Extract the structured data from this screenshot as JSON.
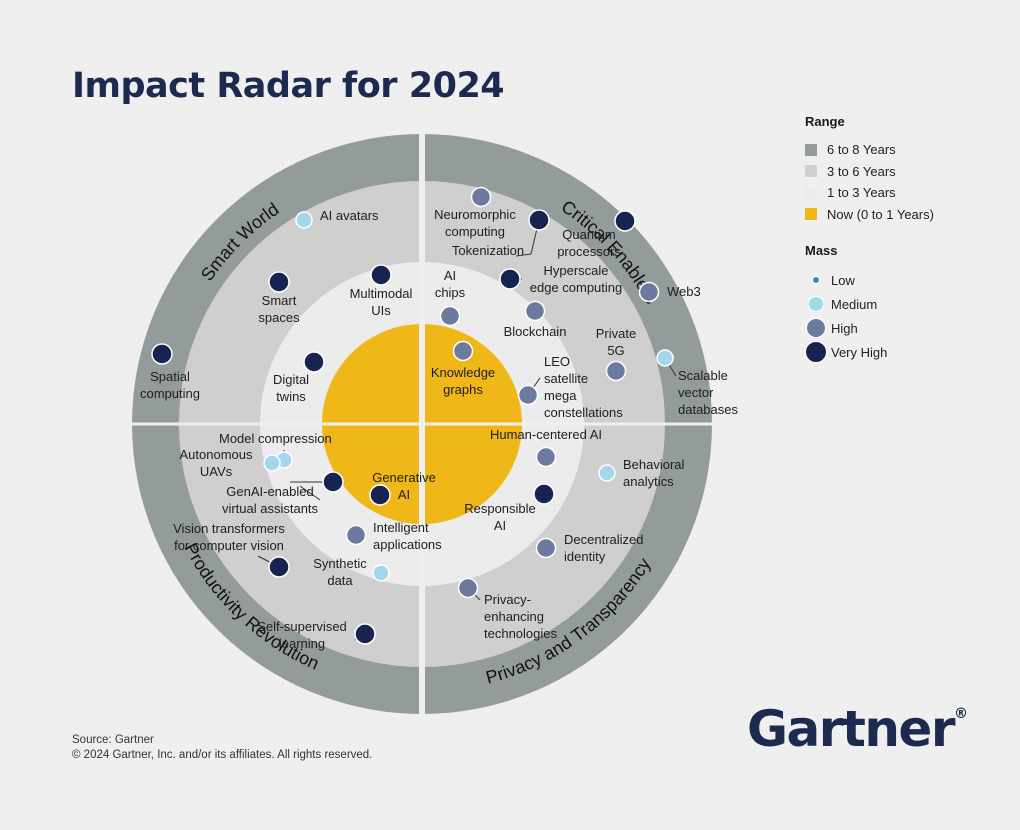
{
  "title": "Impact Radar for 2024",
  "legend": {
    "range_title": "Range",
    "range_items": [
      {
        "label": "6 to 8 Years",
        "color": "#949b9b"
      },
      {
        "label": "3 to 6 Years",
        "color": "#cfcfcf"
      },
      {
        "label": "1 to 3 Years",
        "color": "#ececec"
      },
      {
        "label": "Now (0 to 1 Years)",
        "color": "#f0b719"
      }
    ],
    "mass_title": "Mass",
    "mass_items": [
      {
        "label": "Low",
        "color": "#2a8ec9"
      },
      {
        "label": "Medium",
        "color": "#a6d5ee"
      },
      {
        "label": "High",
        "color": "#6b7a9e"
      },
      {
        "label": "Very High",
        "color": "#172350"
      }
    ]
  },
  "source": "Source: Gartner",
  "copyright": "© 2024 Gartner, Inc. and/or its affiliates. All rights reserved.",
  "logo": "Gartner",
  "logo_mark": "®",
  "chart_data": {
    "type": "radar",
    "rings": [
      "Now (0 to 1 Years)",
      "1 to 3 Years",
      "3 to 6 Years",
      "6 to 8 Years"
    ],
    "quadrants": [
      {
        "name": "Smart World",
        "position": "top-left"
      },
      {
        "name": "Critical Enablers",
        "position": "top-right"
      },
      {
        "name": "Privacy and Transparency",
        "position": "bottom-right"
      },
      {
        "name": "Productivity Revolution",
        "position": "bottom-left"
      }
    ],
    "technologies": [
      {
        "name": "AI avatars",
        "quadrant": "Smart World",
        "range": "3 to 6 Years",
        "mass": "Medium"
      },
      {
        "name": "Smart spaces",
        "quadrant": "Smart World",
        "range": "3 to 6 Years",
        "mass": "Very High"
      },
      {
        "name": "Multimodal UIs",
        "quadrant": "Smart World",
        "range": "1 to 3 Years",
        "mass": "Very High"
      },
      {
        "name": "Spatial computing",
        "quadrant": "Smart World",
        "range": "6 to 8 Years",
        "mass": "Very High"
      },
      {
        "name": "Digital twins",
        "quadrant": "Smart World",
        "range": "1 to 3 Years",
        "mass": "Very High"
      },
      {
        "name": "Neuromorphic computing",
        "quadrant": "Critical Enablers",
        "range": "6 to 8 Years",
        "mass": "High"
      },
      {
        "name": "Tokenization",
        "quadrant": "Critical Enablers",
        "range": "3 to 6 Years",
        "mass": "Very High"
      },
      {
        "name": "Quantum processors",
        "quadrant": "Critical Enablers",
        "range": "6 to 8 Years",
        "mass": "Very High"
      },
      {
        "name": "AI chips",
        "quadrant": "Critical Enablers",
        "range": "1 to 3 Years",
        "mass": "High"
      },
      {
        "name": "Hyperscale edge computing",
        "quadrant": "Critical Enablers",
        "range": "1 to 3 Years",
        "mass": "Very High"
      },
      {
        "name": "Web3",
        "quadrant": "Critical Enablers",
        "range": "6 to 8 Years",
        "mass": "High"
      },
      {
        "name": "Blockchain",
        "quadrant": "Critical Enablers",
        "range": "3 to 6 Years",
        "mass": "High"
      },
      {
        "name": "Private 5G",
        "quadrant": "Critical Enablers",
        "range": "3 to 6 Years",
        "mass": "High"
      },
      {
        "name": "Knowledge graphs",
        "quadrant": "Critical Enablers",
        "range": "Now (0 to 1 Years)",
        "mass": "High"
      },
      {
        "name": "LEO satellite mega constellations",
        "quadrant": "Critical Enablers",
        "range": "1 to 3 Years",
        "mass": "High"
      },
      {
        "name": "Scalable vector databases",
        "quadrant": "Critical Enablers",
        "range": "6 to 8 Years",
        "mass": "Medium"
      },
      {
        "name": "Human-centered AI",
        "quadrant": "Privacy and Transparency",
        "range": "1 to 3 Years",
        "mass": "High"
      },
      {
        "name": "Behavioral analytics",
        "quadrant": "Privacy and Transparency",
        "range": "3 to 6 Years",
        "mass": "Medium"
      },
      {
        "name": "Responsible AI",
        "quadrant": "Privacy and Transparency",
        "range": "1 to 3 Years",
        "mass": "Very High"
      },
      {
        "name": "Decentralized identity",
        "quadrant": "Privacy and Transparency",
        "range": "3 to 6 Years",
        "mass": "High"
      },
      {
        "name": "Privacy-enhancing technologies",
        "quadrant": "Privacy and Transparency",
        "range": "3 to 6 Years",
        "mass": "High"
      },
      {
        "name": "Model compression",
        "quadrant": "Productivity Revolution",
        "range": "1 to 3 Years",
        "mass": "Medium"
      },
      {
        "name": "Autonomous UAVs",
        "quadrant": "Productivity Revolution",
        "range": "1 to 3 Years",
        "mass": "Medium"
      },
      {
        "name": "GenAI-enabled virtual assistants",
        "quadrant": "Productivity Revolution",
        "range": "1 to 3 Years",
        "mass": "Very High"
      },
      {
        "name": "Generative AI",
        "quadrant": "Productivity Revolution",
        "range": "Now (0 to 1 Years)",
        "mass": "Very High"
      },
      {
        "name": "Intelligent applications",
        "quadrant": "Productivity Revolution",
        "range": "1 to 3 Years",
        "mass": "High"
      },
      {
        "name": "Vision transformers for computer vision",
        "quadrant": "Productivity Revolution",
        "range": "3 to 6 Years",
        "mass": "Very High"
      },
      {
        "name": "Synthetic data",
        "quadrant": "Productivity Revolution",
        "range": "1 to 3 Years",
        "mass": "Medium"
      },
      {
        "name": "Self-supervised learning",
        "quadrant": "Productivity Revolution",
        "range": "3 to 6 Years",
        "mass": "Very High"
      }
    ]
  }
}
